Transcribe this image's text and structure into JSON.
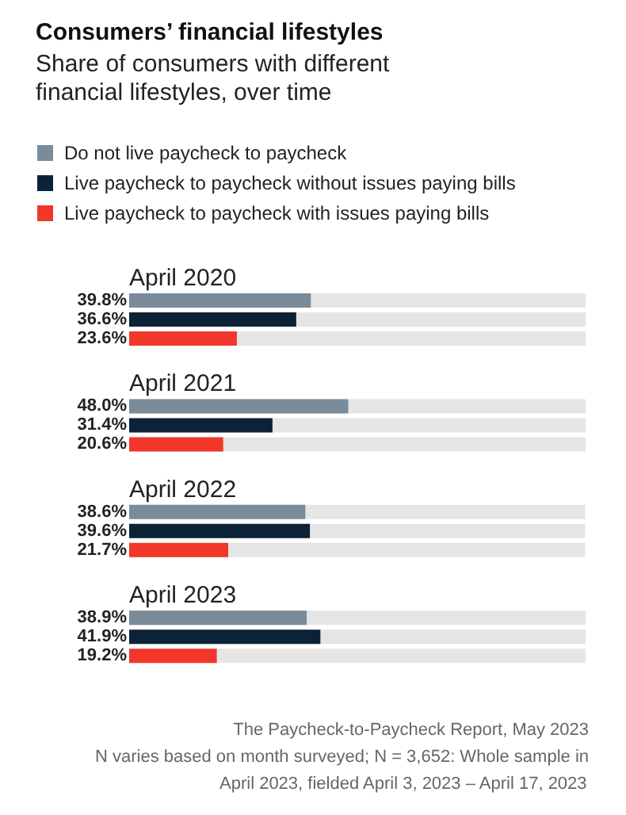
{
  "chart_data": {
    "type": "bar",
    "orientation": "horizontal",
    "title": "Consumers’ financial lifestyles",
    "subtitle": "Share of consumers with different financial lifestyles, over time",
    "categories": [
      "April 2020",
      "April 2021",
      "April 2022",
      "April 2023"
    ],
    "series": [
      {
        "name": "Do not live paycheck to paycheck",
        "color": "#7a8b99",
        "values": [
          39.8,
          48.0,
          38.6,
          38.9
        ],
        "value_labels": [
          "39.8%",
          "48.0%",
          "38.6%",
          "38.9%"
        ]
      },
      {
        "name": "Live paycheck to paycheck without issues paying bills",
        "color": "#0c2237",
        "values": [
          36.6,
          31.4,
          39.6,
          41.9
        ],
        "value_labels": [
          "36.6%",
          "31.4%",
          "39.6%",
          "41.9%"
        ]
      },
      {
        "name": "Live paycheck to paycheck with issues paying bills",
        "color": "#f2372a",
        "values": [
          23.6,
          20.6,
          21.7,
          19.2
        ],
        "value_labels": [
          "23.6%",
          "20.6%",
          "21.7%",
          "19.2%"
        ]
      }
    ],
    "tick_labels": false,
    "legend": "top",
    "grid": false,
    "annotations": [
      "The Paycheck-to-Paycheck Report, May 2023",
      "N varies based on month surveyed; N = 3,652: Whole sample in",
      "April 2023, fielded April 3, 2023 – April 17, 2023"
    ]
  }
}
